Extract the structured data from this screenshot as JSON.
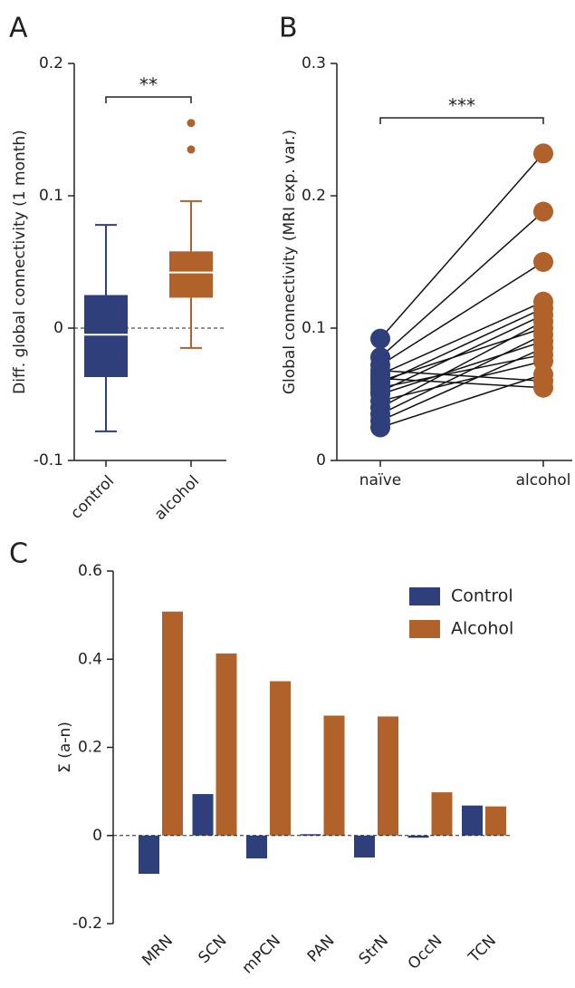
{
  "chart_data": [
    {
      "type": "box",
      "panel_label": "A",
      "ylabel": "Diff. global connectivity (1 month)",
      "categories": [
        "control",
        "alcohol"
      ],
      "colors": [
        "#2e3f7c",
        "#b0622a"
      ],
      "whislo": [
        -0.078,
        -0.015
      ],
      "q1": [
        -0.037,
        0.023
      ],
      "median": [
        -0.005,
        0.042
      ],
      "q3": [
        0.025,
        0.058
      ],
      "whishi": [
        0.078,
        0.096
      ],
      "fliers": [
        [],
        [
          0.135,
          0.155
        ]
      ],
      "annotation": "**",
      "ylim": [
        -0.1,
        0.2
      ],
      "yticks": [
        -0.1,
        0,
        0.1,
        0.2
      ]
    },
    {
      "type": "paired",
      "panel_label": "B",
      "ylabel": "Global connectivity (MRI exp. var.)",
      "series": [
        {
          "name": "naïve",
          "color": "#2e3f7c",
          "values": [
            0.092,
            0.078,
            0.072,
            0.068,
            0.065,
            0.062,
            0.06,
            0.058,
            0.055,
            0.052,
            0.05,
            0.045,
            0.04,
            0.035,
            0.03,
            0.025
          ]
        },
        {
          "name": "alcohol",
          "color": "#b0622a",
          "values": [
            0.232,
            0.188,
            0.15,
            0.06,
            0.12,
            0.055,
            0.1,
            0.115,
            0.08,
            0.11,
            0.09,
            0.075,
            0.105,
            0.095,
            0.085,
            0.065
          ]
        }
      ],
      "annotation": "***",
      "ylim": [
        0,
        0.3
      ],
      "yticks": [
        0,
        0.1,
        0.2,
        0.3
      ]
    },
    {
      "type": "bar",
      "panel_label": "C",
      "ylabel": "Σ (a-n)",
      "categories": [
        "MRN",
        "SCN",
        "mPCN",
        "PAN",
        "StrN",
        "OccN",
        "TCN"
      ],
      "series": [
        {
          "name": "Control",
          "color": "#2e3f7c",
          "values": [
            -0.087,
            0.094,
            -0.052,
            0.003,
            -0.05,
            -0.005,
            0.068
          ]
        },
        {
          "name": "Alcohol",
          "color": "#b0622a",
          "values": [
            0.508,
            0.413,
            0.35,
            0.272,
            0.27,
            0.098,
            0.066
          ]
        }
      ],
      "legend": "upper right",
      "ylim": [
        -0.2,
        0.6
      ],
      "yticks": [
        -0.2,
        0,
        0.2,
        0.4,
        0.6
      ]
    }
  ]
}
